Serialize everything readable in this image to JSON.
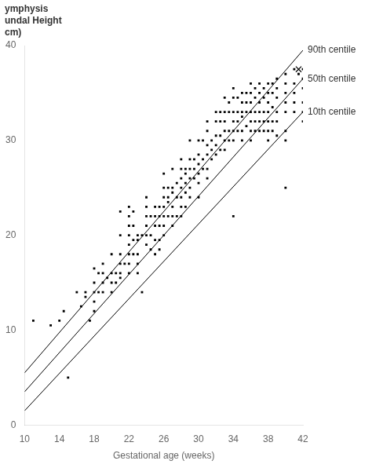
{
  "chart_data": {
    "type": "scatter",
    "xlabel": "Gestational age (weeks)",
    "ylabel": [
      "ymphysis",
      "undal Height",
      "cm)"
    ],
    "xlim": [
      10,
      42
    ],
    "ylim": [
      0,
      40
    ],
    "xticks": [
      10,
      14,
      18,
      22,
      26,
      30,
      34,
      38,
      42
    ],
    "yticks": [
      0,
      10,
      20,
      30,
      40
    ],
    "grid": false,
    "series": [
      {
        "name": "90th centile",
        "type": "line",
        "color": "#000000",
        "x": [
          10,
          42
        ],
        "values": [
          5.5,
          39.5
        ]
      },
      {
        "name": "50th centile",
        "type": "line",
        "color": "#000000",
        "x": [
          10,
          42
        ],
        "values": [
          3.5,
          36.5
        ]
      },
      {
        "name": "10th centile",
        "type": "line",
        "color": "#000000",
        "x": [
          10,
          42
        ],
        "values": [
          1.5,
          33.0
        ]
      },
      {
        "type": "scatter",
        "marker": "square",
        "color": "#000000",
        "x": [
          11,
          13,
          14,
          14.5,
          15,
          16,
          16.5,
          17,
          17,
          17.5,
          18,
          18,
          18,
          18,
          18,
          18.5,
          18.5,
          19,
          19,
          19,
          19,
          19.5,
          20,
          20,
          20,
          20,
          20.5,
          20.5,
          21,
          21,
          21,
          21,
          21,
          21,
          21.5,
          22,
          22,
          22,
          22,
          22,
          22,
          22,
          22,
          22.5,
          22.5,
          22.5,
          22.5,
          23,
          23,
          23,
          23,
          23,
          23.5,
          23.5,
          24,
          24,
          24,
          24,
          24,
          24,
          24.5,
          24.5,
          24.5,
          25,
          25,
          25,
          25,
          25,
          25.5,
          25.5,
          25.5,
          25.5,
          25.5,
          26,
          26,
          26,
          26,
          26,
          26,
          26,
          26.5,
          26.5,
          26.5,
          26.5,
          27,
          27,
          27,
          27,
          27,
          27,
          27.5,
          27.5,
          27.5,
          28,
          28,
          28,
          28,
          28,
          28,
          28,
          28.5,
          28.5,
          28.5,
          28.5,
          28.5,
          29,
          29,
          29,
          29,
          29,
          29,
          29.5,
          29.5,
          29.5,
          30,
          30,
          30,
          30,
          30,
          30,
          30.5,
          30.5,
          30.5,
          31,
          31,
          31,
          31,
          31,
          31,
          31.5,
          31.5,
          31.5,
          32,
          32,
          32,
          32,
          32,
          32.5,
          32.5,
          32.5,
          32.5,
          33,
          33,
          33,
          33,
          33,
          33,
          33.5,
          33.5,
          33.5,
          33.5,
          34,
          34,
          34,
          34,
          34,
          34,
          34,
          34.5,
          34.5,
          34.5,
          34.5,
          35,
          35,
          35,
          35,
          35,
          35,
          35.5,
          35.5,
          35.5,
          35.5,
          36,
          36,
          36,
          36,
          36,
          36,
          36,
          36.5,
          36.5,
          36.5,
          36.5,
          36.5,
          37,
          37,
          37,
          37,
          37,
          37,
          37.5,
          37.5,
          37.5,
          37.5,
          37.5,
          38,
          38,
          38,
          38,
          38,
          38,
          38,
          38.5,
          38.5,
          38.5,
          38.5,
          38.5,
          39,
          39,
          39,
          39,
          39,
          39,
          40,
          40,
          40,
          40,
          40,
          40,
          40,
          40,
          41,
          41,
          41,
          41,
          41,
          41.5,
          42,
          42,
          42,
          42,
          42,
          42
        ],
        "values": [
          11,
          10.5,
          11,
          12,
          5,
          14,
          12.5,
          13.5,
          14,
          11,
          15,
          14,
          13,
          12,
          16.5,
          16,
          14,
          17,
          16,
          15,
          14,
          15.5,
          18,
          16,
          15,
          14,
          16,
          15,
          22.5,
          20,
          18,
          17,
          16,
          15.5,
          17,
          23,
          22,
          21,
          20,
          19,
          18,
          17,
          16,
          22.5,
          21,
          19.5,
          18,
          20,
          19.5,
          18,
          17,
          16,
          20,
          14,
          24,
          23,
          22,
          21,
          20,
          19,
          22,
          20,
          18.5,
          23,
          22,
          21,
          19.5,
          18,
          23,
          22,
          21,
          19.5,
          18.5,
          26.5,
          25,
          24,
          23,
          22,
          21,
          20,
          25,
          24,
          23.5,
          22,
          27,
          25,
          24.5,
          23,
          22,
          21,
          25.5,
          24,
          22,
          28,
          27,
          26,
          25,
          24,
          23,
          22,
          26.5,
          25.5,
          24.5,
          23,
          27,
          30,
          28,
          27,
          26,
          25,
          24,
          28,
          27,
          26,
          30,
          28.5,
          27.5,
          26.5,
          25.5,
          24,
          30,
          28,
          27,
          32,
          31,
          29.5,
          28.5,
          27,
          26,
          30,
          29,
          28,
          33,
          32,
          30.5,
          29.5,
          28.5,
          33,
          32,
          30.5,
          29,
          34.5,
          33,
          32,
          31,
          30,
          29,
          34,
          33,
          31,
          30,
          35.5,
          34.5,
          33,
          32,
          31,
          30,
          22,
          34.5,
          33,
          32,
          31,
          35,
          34,
          33,
          32.5,
          31,
          30,
          35,
          34,
          33,
          31.5,
          36,
          35,
          34,
          33,
          32,
          31,
          30,
          35.5,
          34.5,
          33,
          32,
          31,
          36,
          35,
          34,
          33,
          32,
          31,
          35.5,
          34.5,
          33,
          32,
          31,
          36,
          35,
          34,
          33,
          32,
          31,
          30,
          36,
          35,
          33.5,
          32,
          31,
          36.5,
          35.5,
          34.5,
          33,
          32,
          30.5,
          37,
          36,
          35,
          34,
          33,
          31,
          30,
          25,
          37.5,
          36,
          35,
          34,
          33,
          37,
          37.5,
          36.5,
          35.5,
          34,
          33,
          32
        ]
      },
      {
        "type": "scatter",
        "marker": "x",
        "color": "#000000",
        "x": [
          41.5
        ],
        "values": [
          37.5
        ]
      }
    ]
  }
}
